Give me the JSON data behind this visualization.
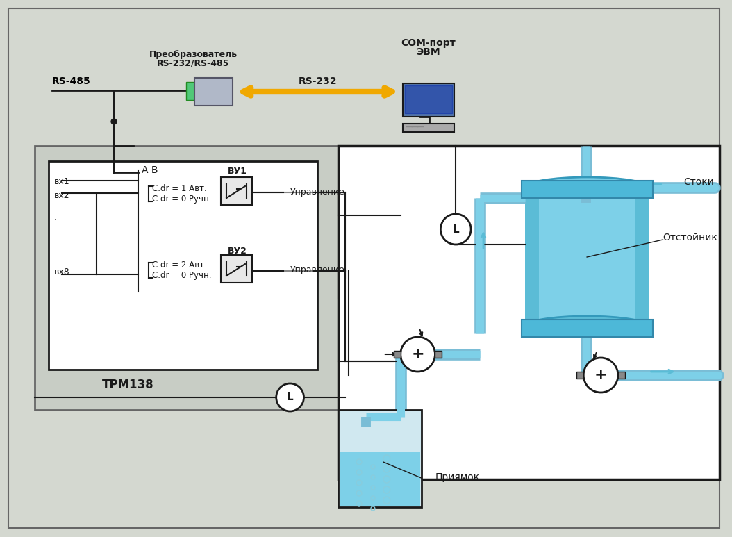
{
  "bg_color": "#d4d8d0",
  "title": "",
  "fig_width": 10.54,
  "fig_height": 7.73,
  "rs485_label": "RS-485",
  "rs232_label": "RS-232",
  "converter_label1": "Преобразователь",
  "converter_label2": "RS-232/RS-485",
  "com_label1": "СОМ-порт",
  "com_label2": "ЭВМ",
  "trm_label": "ТРМ138",
  "vu1_label": "ВУ1",
  "vu2_label": "ВУ2",
  "vx1_label": "вх1",
  "vx2_label": "вх2",
  "vx8_label": "вх8",
  "ab_label": "А В",
  "cdr1_auto": "C.dr = 1 Авт.",
  "cdr1_manual": "C.dr = 0 Ручн.",
  "cdr2_auto": "C.dr = 2 Авт.",
  "cdr2_manual": "C.dr = 0 Ручн.",
  "upravlenie": "Управление",
  "stoki_label": "Стоки",
  "otstoynik_label": "Отстойник",
  "priyamok_label": "Приямок",
  "L_label": "L",
  "water_color": "#5bbcd6",
  "water_color2": "#7dd0e8",
  "water_light": "#a8e0f0",
  "pipe_color": "#7abdd6",
  "tank_color": "#4db8d8",
  "converter_color": "#b0b8c8",
  "converter_green": "#50c878",
  "yellow_arrow_color": "#f0a800",
  "dark_line": "#1a1a1a",
  "grey_line": "#888888",
  "box_bg": "#ffffff"
}
